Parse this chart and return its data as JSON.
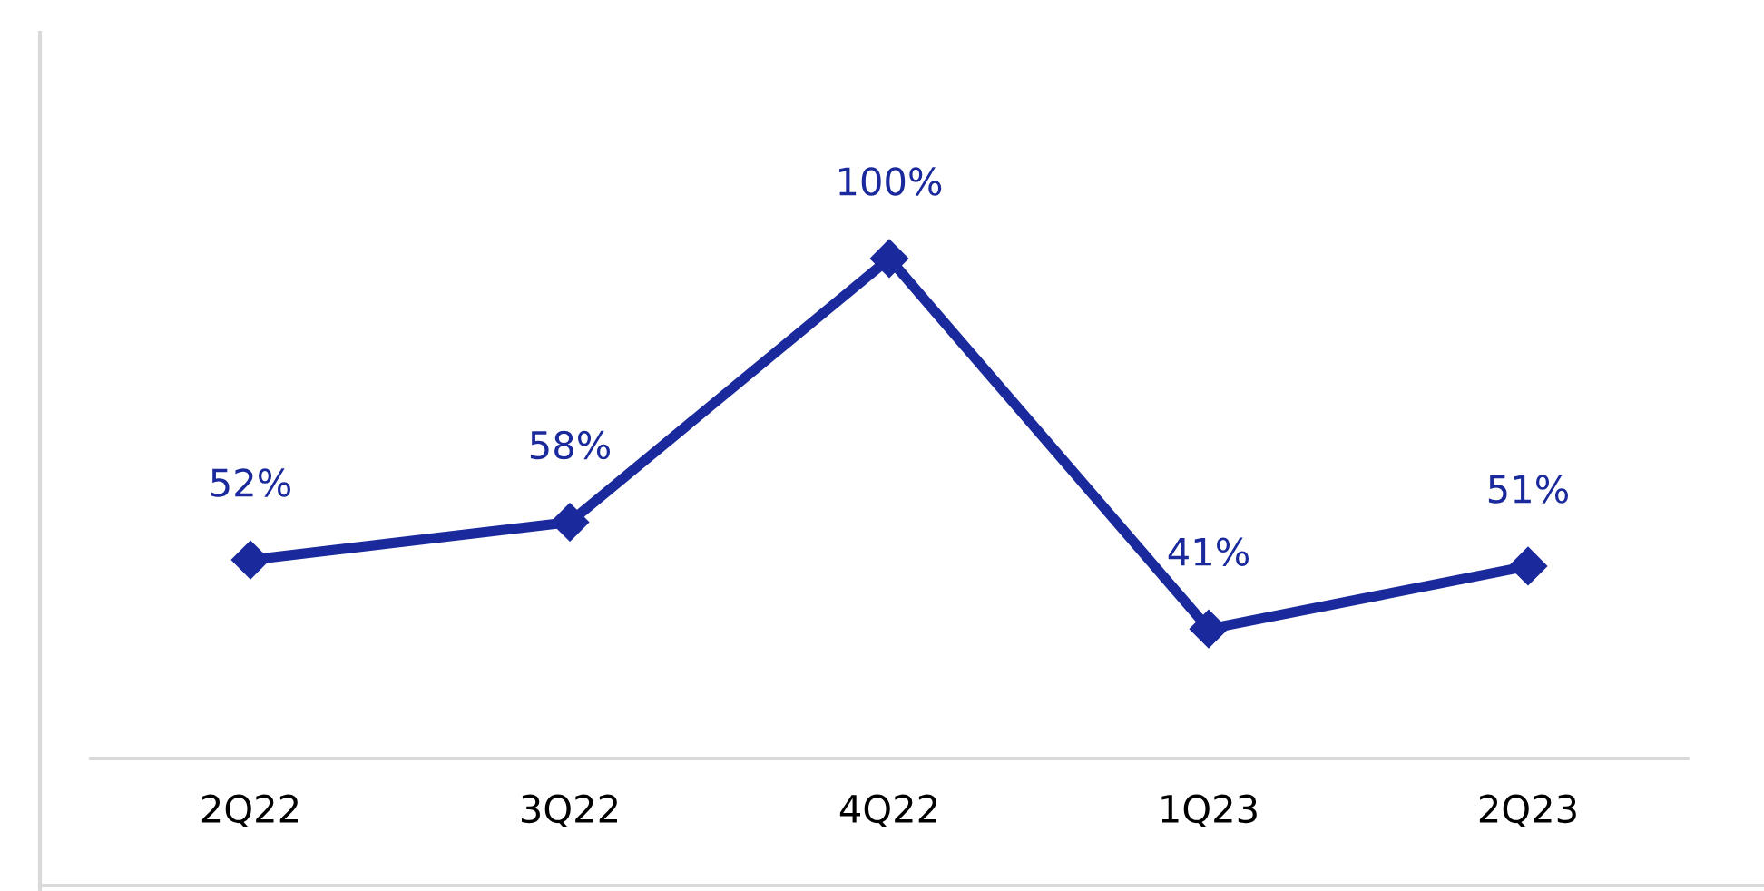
{
  "chart_data": {
    "type": "line",
    "categories": [
      "2Q22",
      "3Q22",
      "4Q22",
      "1Q23",
      "2Q23"
    ],
    "series": [
      {
        "color": "#1a2a9c",
        "values": [
          52,
          58,
          100,
          41,
          51
        ],
        "value_labels": [
          "52%",
          "58%",
          "100%",
          "41%",
          "51%"
        ]
      }
    ],
    "marker": "diamond",
    "line_style": "solid",
    "grid": false,
    "legend": false
  }
}
